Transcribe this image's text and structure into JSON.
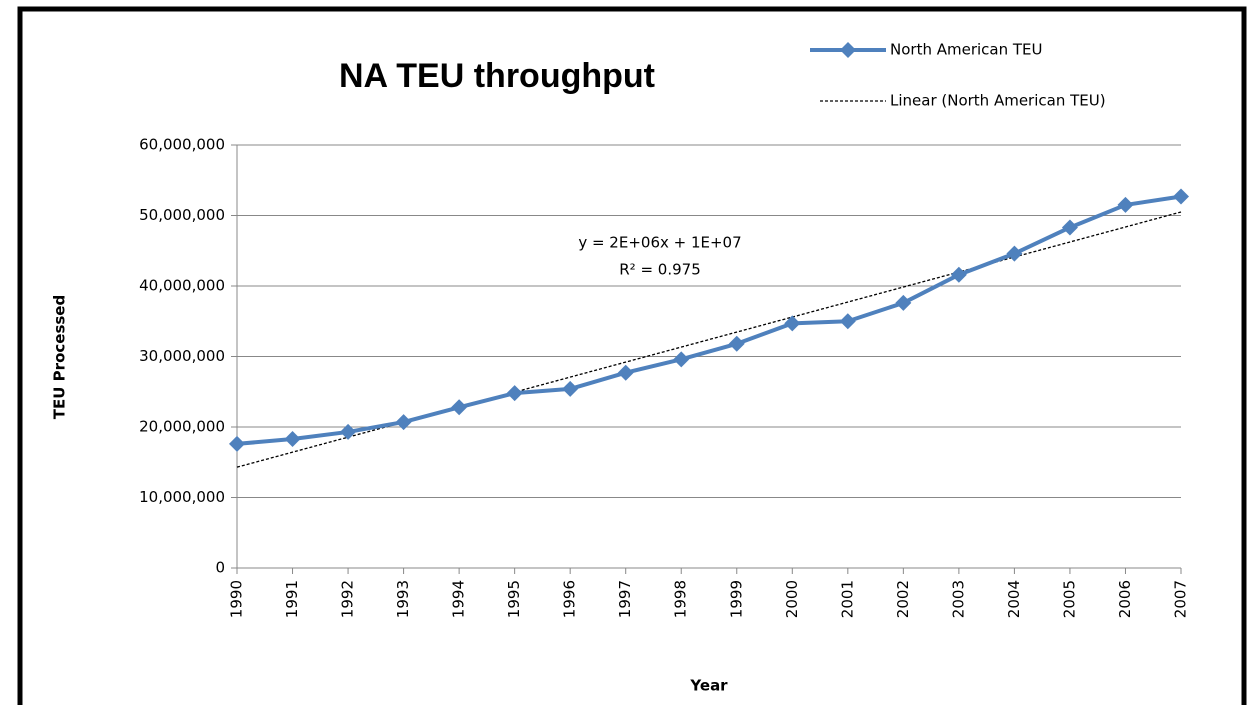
{
  "chart_data": {
    "type": "line",
    "title": "NA TEU throughput",
    "x_label": "Year",
    "y_label": "TEU Processed",
    "categories": [
      "1990",
      "1991",
      "1992",
      "1993",
      "1994",
      "1995",
      "1996",
      "1997",
      "1998",
      "1999",
      "2000",
      "2001",
      "2002",
      "2003",
      "2004",
      "2005",
      "2006",
      "2007"
    ],
    "series": [
      {
        "name": "North American TEU",
        "color": "#4f81bd",
        "values": [
          17600000,
          18300000,
          19300000,
          20700000,
          22800000,
          24800000,
          25400000,
          27700000,
          29600000,
          31800000,
          34700000,
          35000000,
          37600000,
          41600000,
          44600000,
          48300000,
          51500000,
          52700000
        ]
      }
    ],
    "trendline": {
      "name": "Linear (North American TEU)",
      "color": "#000000",
      "values": [
        14300000,
        50500000
      ]
    },
    "annotations": [
      "y = 2E+06x + 1E+07",
      "R² = 0.975"
    ],
    "ylim": [
      0,
      60000000
    ],
    "yticks": [
      0,
      {
        "value": 10000000,
        "label": "10,000,000"
      },
      {
        "value": 20000000,
        "label": "20,000,000"
      },
      {
        "value": 30000000,
        "label": "30,000,000"
      },
      {
        "value": 40000000,
        "label": "40,000,000"
      },
      {
        "value": 50000000,
        "label": "50,000,000"
      },
      {
        "value": 60000000,
        "label": "60,000,000"
      }
    ],
    "grid": true,
    "legend": "top-right"
  }
}
